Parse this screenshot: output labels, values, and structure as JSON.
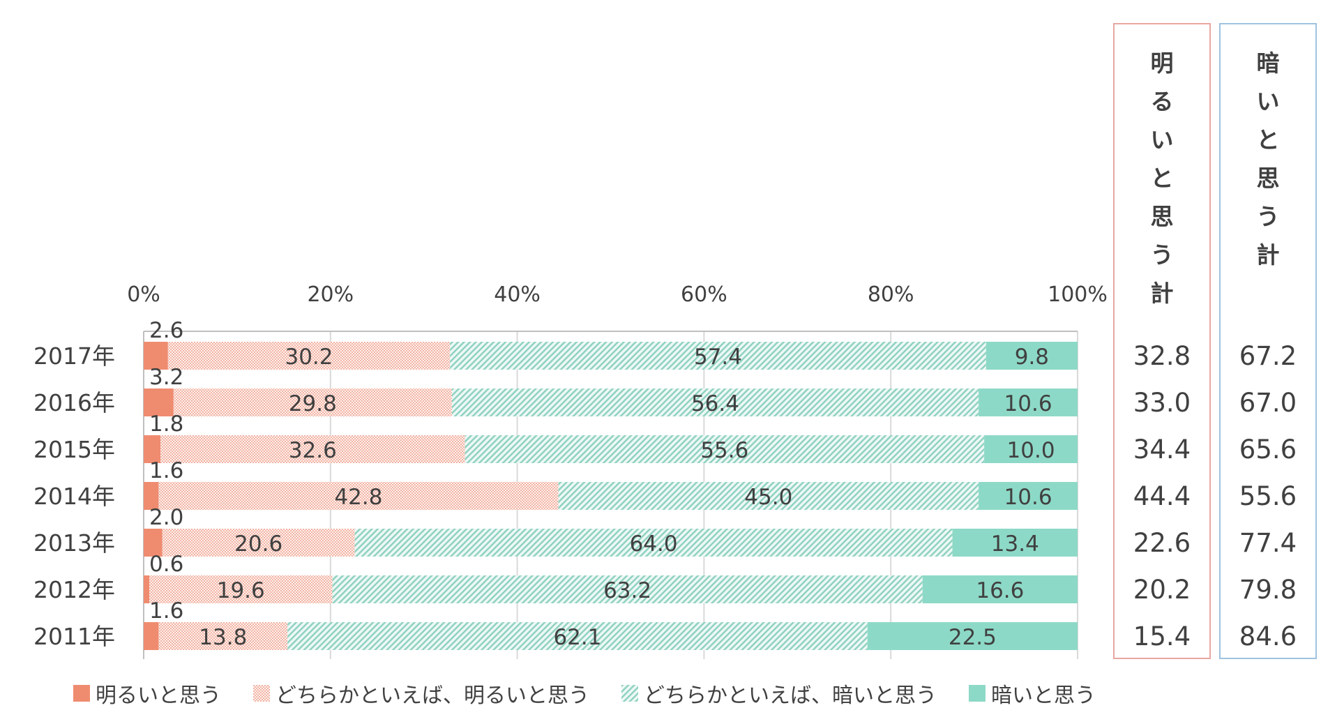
{
  "chart_data": {
    "type": "bar",
    "orientation": "horizontal-stacked-100",
    "categories": [
      "2017年",
      "2016年",
      "2015年",
      "2014年",
      "2013年",
      "2012年",
      "2011年"
    ],
    "series": [
      {
        "name": "明るいと思う",
        "values": [
          2.6,
          3.2,
          1.8,
          1.6,
          2.0,
          0.6,
          1.6
        ],
        "color": "#ef8c70",
        "pattern": "solid"
      },
      {
        "name": "どちらかといえば、明るいと思う",
        "values": [
          30.2,
          29.8,
          32.6,
          42.8,
          20.6,
          19.6,
          13.8
        ],
        "color": "#f3b4a4",
        "pattern": "dots"
      },
      {
        "name": "どちらかといえば、暗いと思う",
        "values": [
          57.4,
          56.4,
          55.6,
          45.0,
          64.0,
          63.2,
          62.1
        ],
        "color": "#8fd2c1",
        "pattern": "diagonal"
      },
      {
        "name": "暗いと思う",
        "values": [
          9.8,
          10.6,
          10.0,
          10.6,
          13.4,
          16.6,
          22.5
        ],
        "color": "#8dd9c7",
        "pattern": "solid"
      }
    ],
    "axis_ticks": [
      "0%",
      "20%",
      "40%",
      "60%",
      "80%",
      "100%"
    ],
    "xlim": [
      0,
      100
    ],
    "grid": true,
    "legend_position": "bottom"
  },
  "summary": {
    "bright": {
      "header": [
        "明",
        "る",
        "い",
        "と",
        "思",
        "う",
        "計"
      ],
      "values": [
        "32.8",
        "33.0",
        "34.4",
        "44.4",
        "22.6",
        "20.2",
        "15.4"
      ]
    },
    "dark": {
      "header": [
        "暗",
        "い",
        "と",
        "思",
        "う",
        "計"
      ],
      "values": [
        "67.2",
        "67.0",
        "65.6",
        "55.6",
        "77.4",
        "79.8",
        "84.6"
      ]
    }
  },
  "legend": [
    {
      "label": "明るいと思う"
    },
    {
      "label": "どちらかといえば、明るいと思う"
    },
    {
      "label": "どちらかといえば、暗いと思う"
    },
    {
      "label": "暗いと思う"
    }
  ]
}
